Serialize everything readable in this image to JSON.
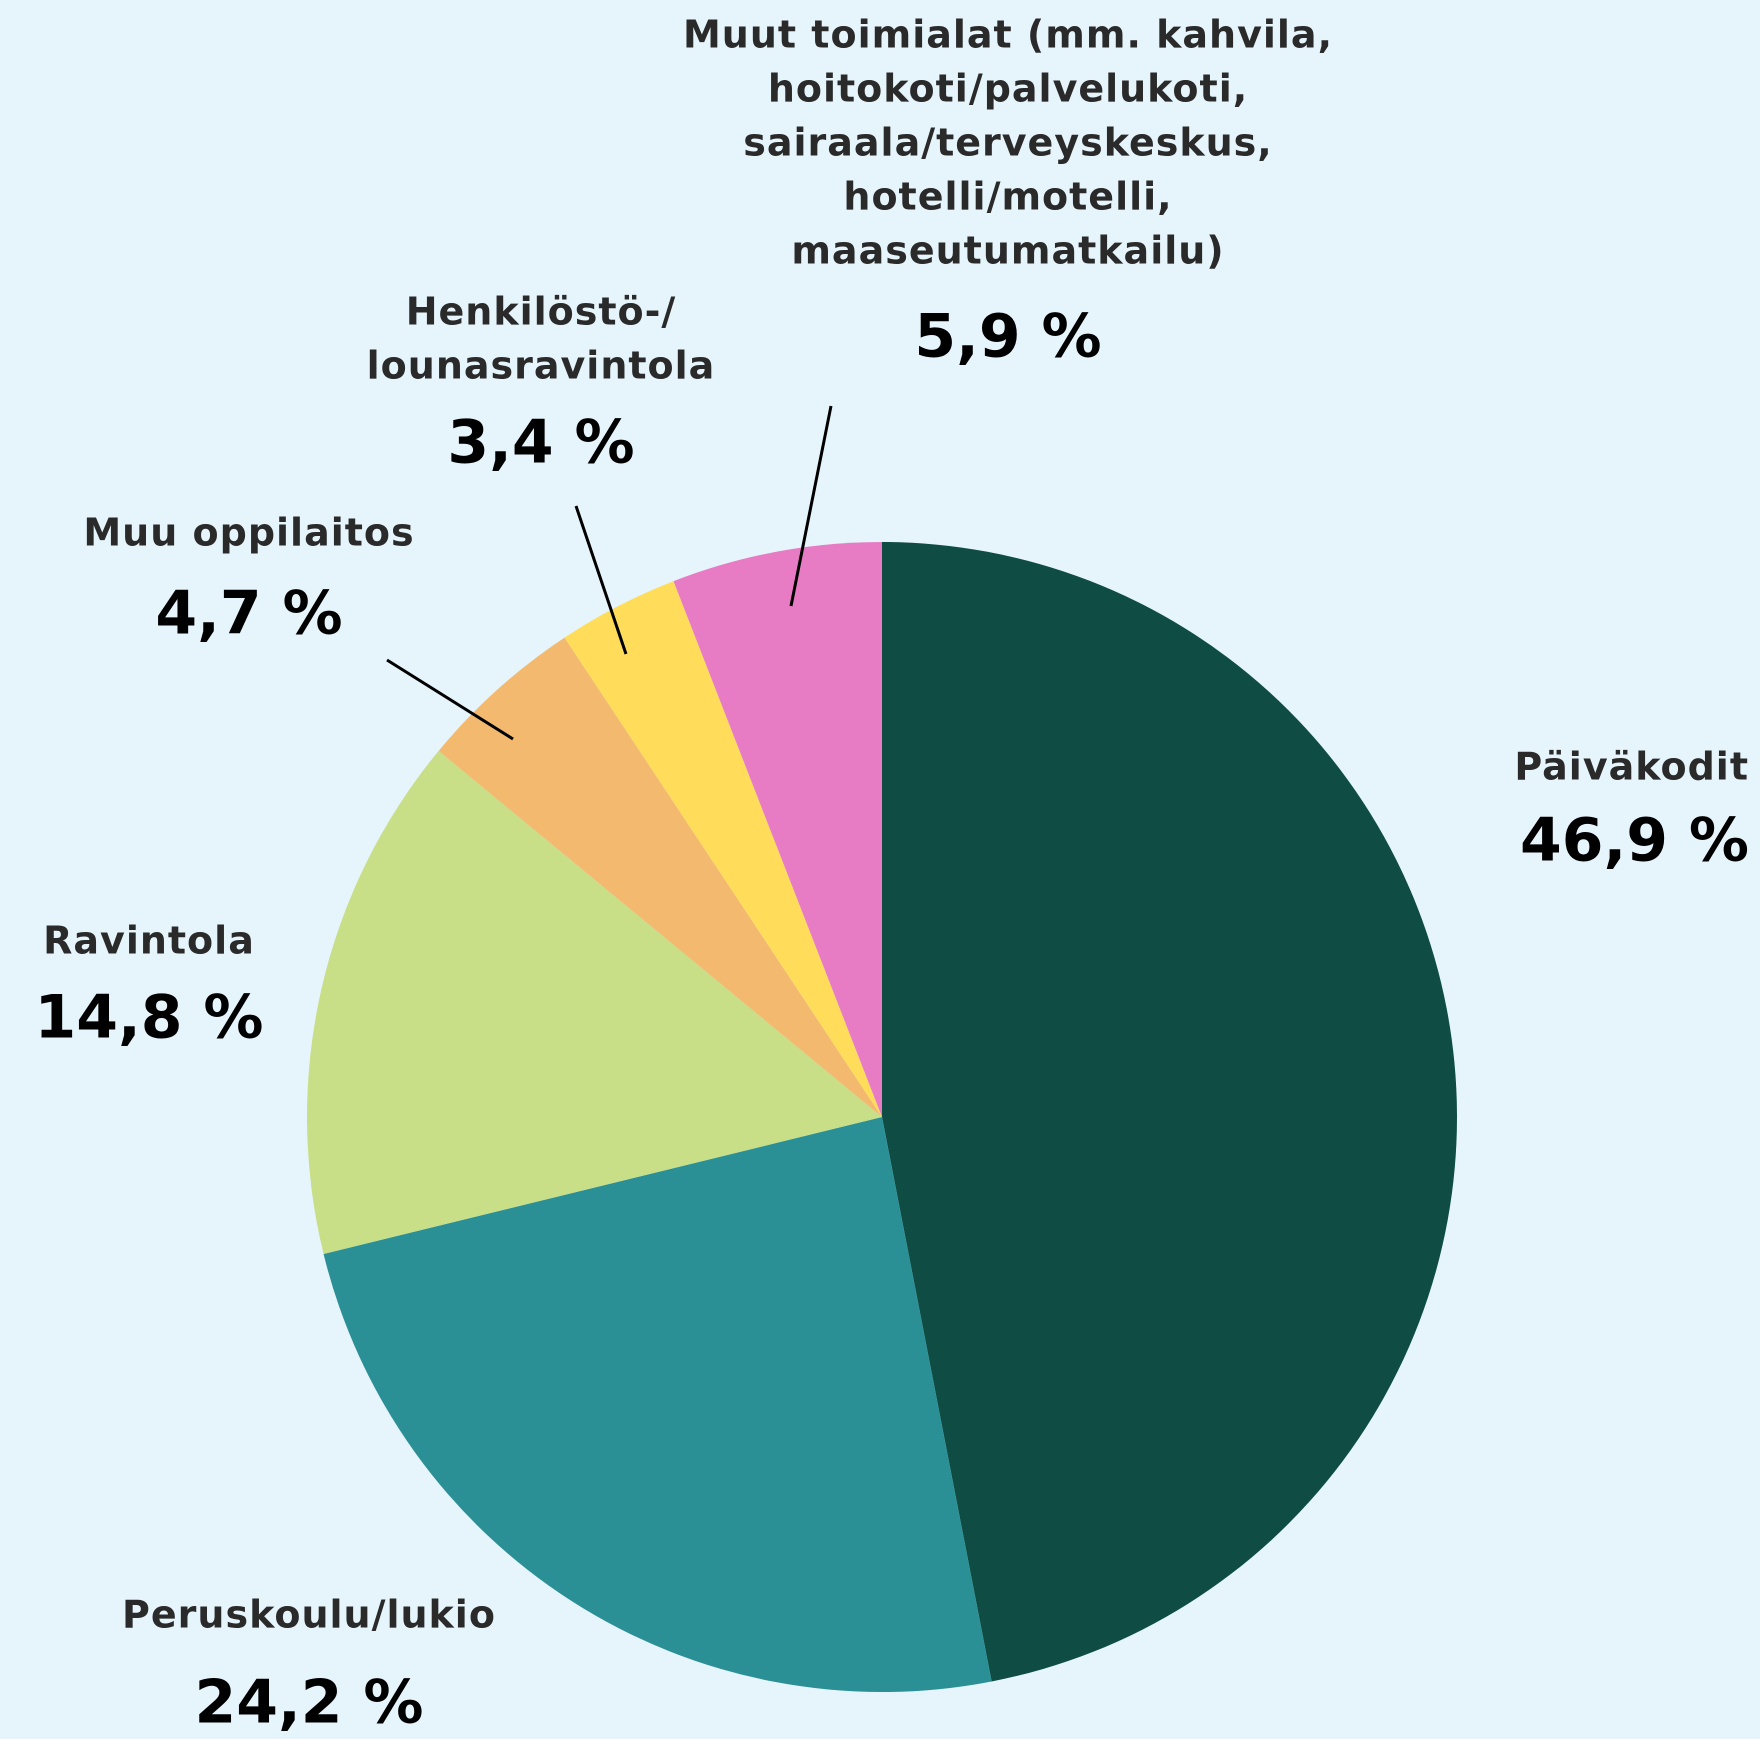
{
  "chart_data": {
    "type": "pie",
    "categories": [
      [
        "Päiväkodit"
      ],
      [
        "Peruskoulu/lukio"
      ],
      [
        "Ravintola"
      ],
      [
        "Muu oppilaitos"
      ],
      [
        "Henkilöstö-/",
        "lounasravintola"
      ],
      [
        "Muut toimialat (mm. kahvila,",
        "hoitokoti/palvelukoti,",
        "sairaala/terveyskeskus,",
        "hotelli/motelli,",
        "maaseutumatkailu)"
      ]
    ],
    "values": [
      46.9,
      24.2,
      14.8,
      4.7,
      3.4,
      5.9
    ],
    "value_labels": [
      "46,9 %",
      "24,2 %",
      "14,8 %",
      "4,7 %",
      "3,4 %",
      "5,9 %"
    ],
    "colors": [
      "#0f4c43",
      "#2b9095",
      "#c8de87",
      "#f3b96f",
      "#ffdd5b",
      "#e87cc4"
    ]
  }
}
